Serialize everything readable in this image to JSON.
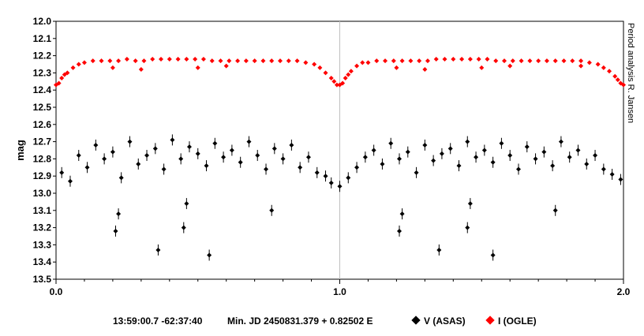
{
  "chart_data": {
    "type": "scatter",
    "title": "",
    "xlabel": "",
    "ylabel": "mag",
    "xlim": [
      0.0,
      2.0
    ],
    "ylim": [
      13.5,
      12.0
    ],
    "y_inverted": true,
    "x_ticks": [
      "0.0",
      "1.0",
      "2.0"
    ],
    "y_ticks": [
      "12.0",
      "12.1",
      "12.2",
      "12.3",
      "12.4",
      "12.5",
      "12.6",
      "12.7",
      "12.8",
      "12.9",
      "13.0",
      "13.1",
      "13.2",
      "13.3",
      "13.4",
      "13.5"
    ],
    "grid": "vertical line at x = 1.0",
    "side_note": "Period analysis  R. Jansen",
    "footer": {
      "coords": "13:59:00.7  -62:37:40",
      "ephemeris": "Min. JD 2450831.379 + 0.82502 E"
    },
    "legend": "bottom",
    "series": [
      {
        "name": "V (ASAS)",
        "color": "#000000",
        "marker": "diamond",
        "error_bars": true,
        "points": [
          [
            0.02,
            12.88
          ],
          [
            0.05,
            12.93
          ],
          [
            0.08,
            12.78
          ],
          [
            0.11,
            12.85
          ],
          [
            0.14,
            12.72
          ],
          [
            0.17,
            12.8
          ],
          [
            0.2,
            12.76
          ],
          [
            0.23,
            12.91
          ],
          [
            0.26,
            12.7
          ],
          [
            0.29,
            12.83
          ],
          [
            0.32,
            12.78
          ],
          [
            0.35,
            12.74
          ],
          [
            0.38,
            12.86
          ],
          [
            0.41,
            12.69
          ],
          [
            0.44,
            12.8
          ],
          [
            0.47,
            12.73
          ],
          [
            0.5,
            12.77
          ],
          [
            0.53,
            12.84
          ],
          [
            0.56,
            12.71
          ],
          [
            0.59,
            12.79
          ],
          [
            0.62,
            12.75
          ],
          [
            0.65,
            12.82
          ],
          [
            0.68,
            12.7
          ],
          [
            0.71,
            12.78
          ],
          [
            0.74,
            12.86
          ],
          [
            0.77,
            12.74
          ],
          [
            0.8,
            12.8
          ],
          [
            0.83,
            12.72
          ],
          [
            0.86,
            12.85
          ],
          [
            0.89,
            12.79
          ],
          [
            0.92,
            12.88
          ],
          [
            0.95,
            12.9
          ],
          [
            0.97,
            12.94
          ],
          [
            1.0,
            12.96
          ],
          [
            1.03,
            12.91
          ],
          [
            1.06,
            12.85
          ],
          [
            1.09,
            12.79
          ],
          [
            1.12,
            12.75
          ],
          [
            1.15,
            12.83
          ],
          [
            1.18,
            12.71
          ],
          [
            1.21,
            12.8
          ],
          [
            1.24,
            12.76
          ],
          [
            1.27,
            12.88
          ],
          [
            1.3,
            12.72
          ],
          [
            1.33,
            12.81
          ],
          [
            1.36,
            12.77
          ],
          [
            1.39,
            12.74
          ],
          [
            1.42,
            12.84
          ],
          [
            1.45,
            12.7
          ],
          [
            1.48,
            12.79
          ],
          [
            1.51,
            12.75
          ],
          [
            1.54,
            12.82
          ],
          [
            1.57,
            12.71
          ],
          [
            1.6,
            12.78
          ],
          [
            1.63,
            12.86
          ],
          [
            1.66,
            12.73
          ],
          [
            1.69,
            12.8
          ],
          [
            1.72,
            12.76
          ],
          [
            1.75,
            12.84
          ],
          [
            1.78,
            12.7
          ],
          [
            1.81,
            12.79
          ],
          [
            1.84,
            12.75
          ],
          [
            1.87,
            12.83
          ],
          [
            1.9,
            12.78
          ],
          [
            1.93,
            12.86
          ],
          [
            1.96,
            12.89
          ],
          [
            1.99,
            12.92
          ],
          [
            0.21,
            13.22
          ],
          [
            0.22,
            13.12
          ],
          [
            0.36,
            13.33
          ],
          [
            0.45,
            13.2
          ],
          [
            0.46,
            13.06
          ],
          [
            0.54,
            13.36
          ],
          [
            0.76,
            13.1
          ],
          [
            1.21,
            13.22
          ],
          [
            1.22,
            13.12
          ],
          [
            1.35,
            13.33
          ],
          [
            1.45,
            13.2
          ],
          [
            1.46,
            13.06
          ],
          [
            1.54,
            13.36
          ],
          [
            1.76,
            13.1
          ]
        ]
      },
      {
        "name": "I (OGLE)",
        "color": "#ff0000",
        "marker": "diamond",
        "error_bars": false,
        "points": [
          [
            0.0,
            12.37
          ],
          [
            0.01,
            12.36
          ],
          [
            0.02,
            12.33
          ],
          [
            0.03,
            12.31
          ],
          [
            0.04,
            12.3
          ],
          [
            0.06,
            12.27
          ],
          [
            0.08,
            12.25
          ],
          [
            0.1,
            12.24
          ],
          [
            0.13,
            12.23
          ],
          [
            0.16,
            12.23
          ],
          [
            0.19,
            12.23
          ],
          [
            0.22,
            12.23
          ],
          [
            0.25,
            12.22
          ],
          [
            0.28,
            12.23
          ],
          [
            0.31,
            12.23
          ],
          [
            0.34,
            12.22
          ],
          [
            0.37,
            12.22
          ],
          [
            0.4,
            12.22
          ],
          [
            0.43,
            12.22
          ],
          [
            0.46,
            12.22
          ],
          [
            0.49,
            12.22
          ],
          [
            0.52,
            12.22
          ],
          [
            0.55,
            12.23
          ],
          [
            0.58,
            12.23
          ],
          [
            0.61,
            12.23
          ],
          [
            0.64,
            12.23
          ],
          [
            0.67,
            12.23
          ],
          [
            0.7,
            12.23
          ],
          [
            0.73,
            12.23
          ],
          [
            0.76,
            12.23
          ],
          [
            0.79,
            12.23
          ],
          [
            0.82,
            12.23
          ],
          [
            0.85,
            12.23
          ],
          [
            0.88,
            12.24
          ],
          [
            0.91,
            12.25
          ],
          [
            0.93,
            12.27
          ],
          [
            0.95,
            12.3
          ],
          [
            0.97,
            12.33
          ],
          [
            0.98,
            12.35
          ],
          [
            0.99,
            12.37
          ],
          [
            1.0,
            12.37
          ],
          [
            1.01,
            12.36
          ],
          [
            1.02,
            12.33
          ],
          [
            1.03,
            12.31
          ],
          [
            1.04,
            12.29
          ],
          [
            1.06,
            12.26
          ],
          [
            1.08,
            12.24
          ],
          [
            1.1,
            12.24
          ],
          [
            1.13,
            12.23
          ],
          [
            1.16,
            12.23
          ],
          [
            1.19,
            12.23
          ],
          [
            1.22,
            12.23
          ],
          [
            1.25,
            12.23
          ],
          [
            1.28,
            12.23
          ],
          [
            1.31,
            12.23
          ],
          [
            1.34,
            12.22
          ],
          [
            1.37,
            12.22
          ],
          [
            1.4,
            12.22
          ],
          [
            1.43,
            12.22
          ],
          [
            1.46,
            12.22
          ],
          [
            1.49,
            12.22
          ],
          [
            1.52,
            12.22
          ],
          [
            1.55,
            12.23
          ],
          [
            1.58,
            12.23
          ],
          [
            1.61,
            12.23
          ],
          [
            1.64,
            12.23
          ],
          [
            1.67,
            12.23
          ],
          [
            1.7,
            12.23
          ],
          [
            1.73,
            12.23
          ],
          [
            1.76,
            12.23
          ],
          [
            1.79,
            12.23
          ],
          [
            1.82,
            12.23
          ],
          [
            1.85,
            12.23
          ],
          [
            1.88,
            12.24
          ],
          [
            1.91,
            12.25
          ],
          [
            1.93,
            12.27
          ],
          [
            1.95,
            12.29
          ],
          [
            1.97,
            12.32
          ],
          [
            1.98,
            12.34
          ],
          [
            1.99,
            12.36
          ],
          [
            2.0,
            12.37
          ],
          [
            0.2,
            12.27
          ],
          [
            0.3,
            12.28
          ],
          [
            0.5,
            12.27
          ],
          [
            0.6,
            12.26
          ],
          [
            1.2,
            12.27
          ],
          [
            1.3,
            12.28
          ],
          [
            1.5,
            12.27
          ],
          [
            1.6,
            12.26
          ],
          [
            1.85,
            12.26
          ]
        ]
      }
    ]
  }
}
